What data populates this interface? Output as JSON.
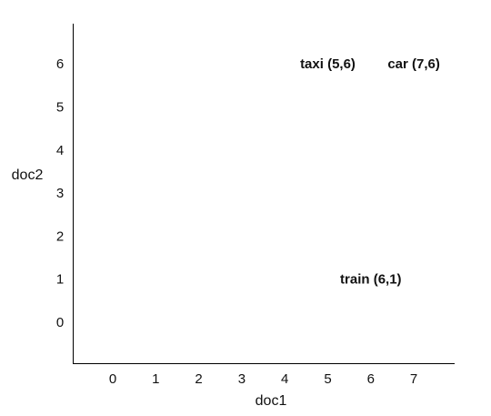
{
  "chart_data": {
    "type": "scatter",
    "title": "",
    "xlabel": "doc1",
    "ylabel": "doc2",
    "x_ticks": [
      "0",
      "1",
      "2",
      "3",
      "4",
      "5",
      "6",
      "7"
    ],
    "y_ticks": [
      "0",
      "1",
      "2",
      "3",
      "4",
      "5",
      "6"
    ],
    "points": [
      {
        "label": "taxi (5,6)",
        "x": 5,
        "y": 6
      },
      {
        "label": "car (7,6)",
        "x": 7,
        "y": 6
      },
      {
        "label": "train (6,1)",
        "x": 6,
        "y": 1
      }
    ],
    "grid": false,
    "axis_color": "#000000"
  }
}
